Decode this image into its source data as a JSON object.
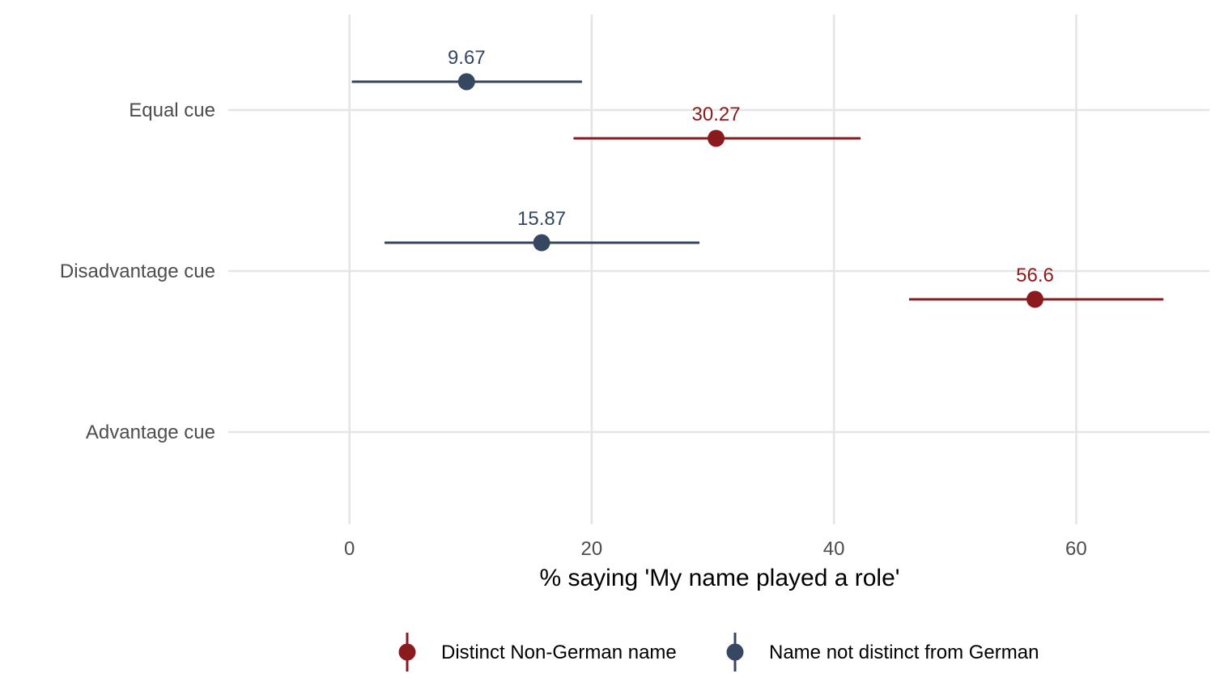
{
  "chart_data": {
    "type": "dot-errorbar",
    "xlabel": "% saying 'My name played a role'",
    "ylabel": "",
    "xlim": [
      -10,
      71
    ],
    "x_ticks": [
      0,
      20,
      40,
      60
    ],
    "x_tick_labels": [
      "0",
      "20",
      "40",
      "60"
    ],
    "categories": [
      "Equal cue",
      "Disadvantage cue",
      "Advantage cue"
    ],
    "grid": true,
    "legend_position": "bottom",
    "series": [
      {
        "name": "Distinct Non-German name",
        "color": "#8b1a1f",
        "points": [
          {
            "category": "Equal cue",
            "value": 30.27,
            "lower": 18.5,
            "upper": 42.2,
            "label": "30.27"
          },
          {
            "category": "Disadvantage cue",
            "value": 56.6,
            "lower": 46.2,
            "upper": 67.2,
            "label": "56.6"
          }
        ]
      },
      {
        "name": "Name not distinct from German",
        "color": "#364761",
        "points": [
          {
            "category": "Equal cue",
            "value": 9.67,
            "lower": 0.2,
            "upper": 19.2,
            "label": "9.67"
          },
          {
            "category": "Disadvantage cue",
            "value": 15.87,
            "lower": 2.9,
            "upper": 28.9,
            "label": "15.87"
          }
        ]
      }
    ]
  }
}
